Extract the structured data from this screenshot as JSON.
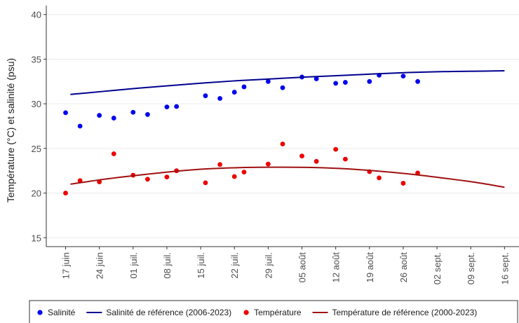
{
  "chart_data": {
    "type": "scatter",
    "title": "",
    "xlabel": "",
    "ylabel": "Température (°C) et salinité (psu)",
    "ylim": [
      14,
      41
    ],
    "yticks": [
      15,
      20,
      25,
      30,
      35,
      40
    ],
    "grid": true,
    "legend_position": "bottom",
    "x_date_range": [
      "2024-06-13",
      "2024-09-19"
    ],
    "x_ticks": [
      {
        "date": "2024-06-17",
        "label": "17 juin"
      },
      {
        "date": "2024-06-24",
        "label": "24 juin"
      },
      {
        "date": "2024-07-01",
        "label": "01 juil."
      },
      {
        "date": "2024-07-08",
        "label": "08 juil."
      },
      {
        "date": "2024-07-15",
        "label": "15 juil."
      },
      {
        "date": "2024-07-22",
        "label": "22 juil."
      },
      {
        "date": "2024-07-29",
        "label": "29 juil."
      },
      {
        "date": "2024-08-05",
        "label": "05 août"
      },
      {
        "date": "2024-08-12",
        "label": "12 août"
      },
      {
        "date": "2024-08-19",
        "label": "19 août"
      },
      {
        "date": "2024-08-26",
        "label": "26 août"
      },
      {
        "date": "2024-09-02",
        "label": "02 sept."
      },
      {
        "date": "2024-09-09",
        "label": "09 sept."
      },
      {
        "date": "2024-09-16",
        "label": "16 sept."
      }
    ],
    "series": [
      {
        "name": "Salinité",
        "kind": "points",
        "color": "#0000ee",
        "points": [
          [
            "2024-06-17",
            29.0
          ],
          [
            "2024-06-20",
            27.5
          ],
          [
            "2024-06-24",
            28.7
          ],
          [
            "2024-06-27",
            28.4
          ],
          [
            "2024-07-01",
            29.05
          ],
          [
            "2024-07-04",
            28.8
          ],
          [
            "2024-07-08",
            29.65
          ],
          [
            "2024-07-10",
            29.7
          ],
          [
            "2024-07-16",
            30.9
          ],
          [
            "2024-07-19",
            30.6
          ],
          [
            "2024-07-22",
            31.3
          ],
          [
            "2024-07-24",
            31.9
          ],
          [
            "2024-07-29",
            32.5
          ],
          [
            "2024-08-01",
            31.8
          ],
          [
            "2024-08-05",
            33.0
          ],
          [
            "2024-08-08",
            32.8
          ],
          [
            "2024-08-12",
            32.3
          ],
          [
            "2024-08-14",
            32.4
          ],
          [
            "2024-08-19",
            32.5
          ],
          [
            "2024-08-21",
            33.2
          ],
          [
            "2024-08-26",
            33.1
          ],
          [
            "2024-08-29",
            32.5
          ]
        ]
      },
      {
        "name": "Salinité de référence (2006-2023)",
        "kind": "line",
        "color": "#000090",
        "points": [
          [
            "2024-06-18",
            31.05
          ],
          [
            "2024-06-25",
            31.4
          ],
          [
            "2024-07-02",
            31.75
          ],
          [
            "2024-07-09",
            32.05
          ],
          [
            "2024-07-16",
            32.35
          ],
          [
            "2024-07-23",
            32.6
          ],
          [
            "2024-07-30",
            32.8
          ],
          [
            "2024-08-06",
            33.0
          ],
          [
            "2024-08-13",
            33.17
          ],
          [
            "2024-08-20",
            33.35
          ],
          [
            "2024-08-27",
            33.5
          ],
          [
            "2024-09-03",
            33.6
          ],
          [
            "2024-09-10",
            33.65
          ],
          [
            "2024-09-16",
            33.7
          ]
        ]
      },
      {
        "name": "Température",
        "kind": "points",
        "color": "#ee0000",
        "points": [
          [
            "2024-06-17",
            20.0
          ],
          [
            "2024-06-20",
            21.4
          ],
          [
            "2024-06-24",
            21.25
          ],
          [
            "2024-06-27",
            24.4
          ],
          [
            "2024-07-01",
            22.0
          ],
          [
            "2024-07-04",
            21.55
          ],
          [
            "2024-07-08",
            21.8
          ],
          [
            "2024-07-10",
            22.5
          ],
          [
            "2024-07-16",
            21.15
          ],
          [
            "2024-07-19",
            23.2
          ],
          [
            "2024-07-22",
            21.85
          ],
          [
            "2024-07-24",
            22.35
          ],
          [
            "2024-07-29",
            23.25
          ],
          [
            "2024-08-01",
            25.5
          ],
          [
            "2024-08-05",
            24.15
          ],
          [
            "2024-08-08",
            23.55
          ],
          [
            "2024-08-12",
            24.9
          ],
          [
            "2024-08-14",
            23.8
          ],
          [
            "2024-08-19",
            22.4
          ],
          [
            "2024-08-21",
            21.7
          ],
          [
            "2024-08-26",
            21.1
          ],
          [
            "2024-08-29",
            22.25
          ]
        ]
      },
      {
        "name": "Température de référence (2000-2023)",
        "kind": "line",
        "color": "#a01010",
        "points": [
          [
            "2024-06-18",
            21.0
          ],
          [
            "2024-06-25",
            21.55
          ],
          [
            "2024-07-02",
            22.0
          ],
          [
            "2024-07-09",
            22.4
          ],
          [
            "2024-07-16",
            22.7
          ],
          [
            "2024-07-23",
            22.85
          ],
          [
            "2024-07-30",
            22.9
          ],
          [
            "2024-08-06",
            22.88
          ],
          [
            "2024-08-13",
            22.75
          ],
          [
            "2024-08-20",
            22.5
          ],
          [
            "2024-08-27",
            22.15
          ],
          [
            "2024-09-03",
            21.7
          ],
          [
            "2024-09-10",
            21.2
          ],
          [
            "2024-09-16",
            20.65
          ]
        ]
      }
    ]
  }
}
